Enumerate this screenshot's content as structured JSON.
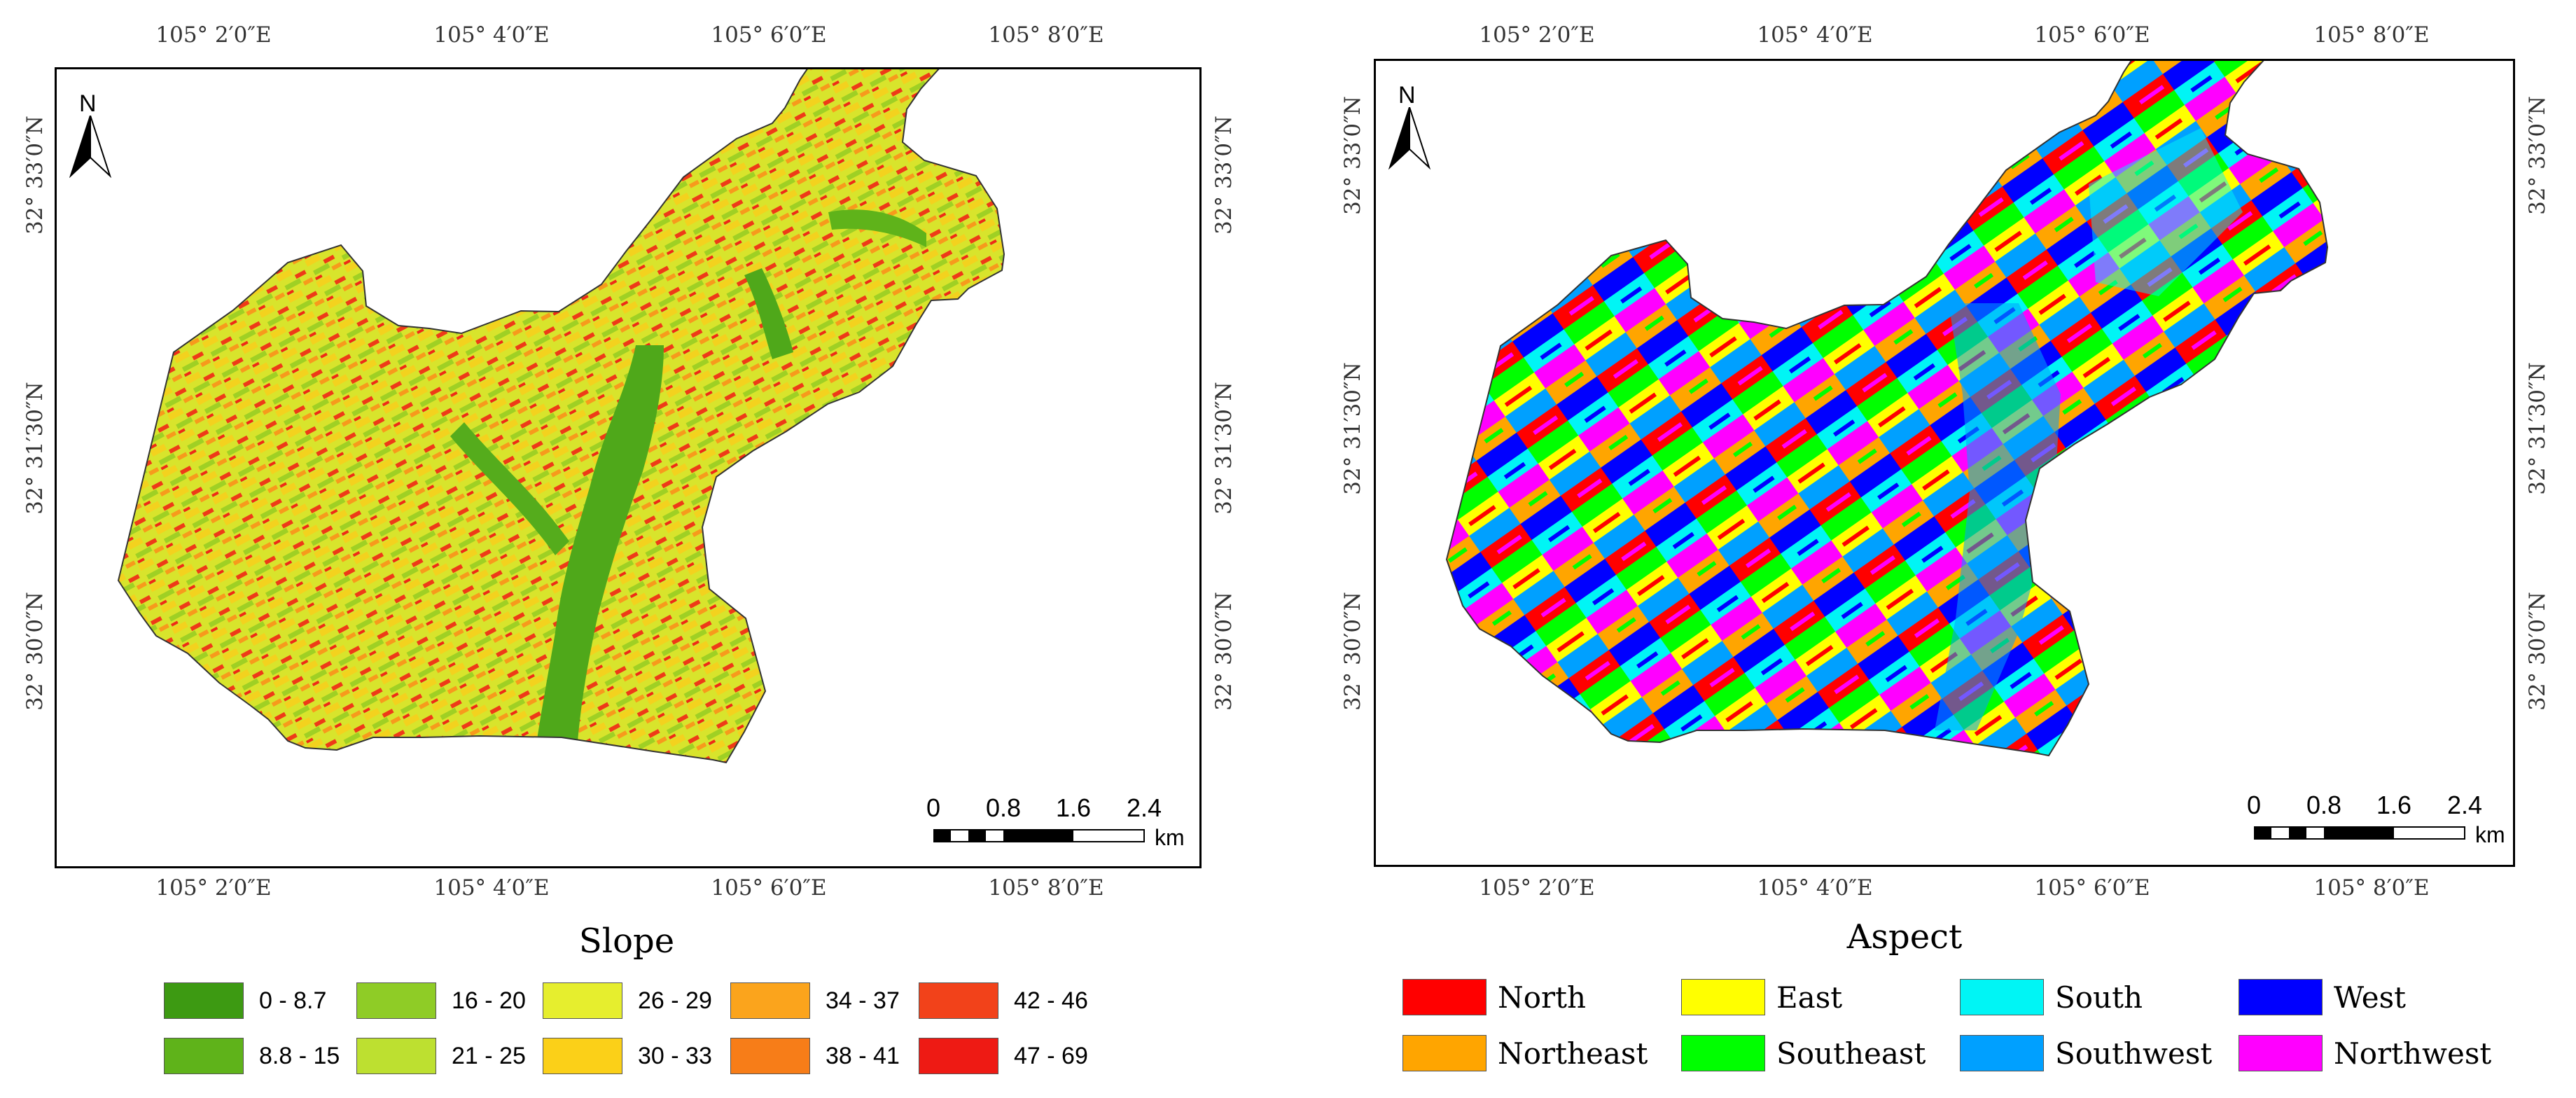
{
  "panels": [
    {
      "title": "Slope",
      "lon_labels": [
        "105° 2′0″E",
        "105° 4′0″E",
        "105° 6′0″E",
        "105° 8′0″E"
      ],
      "lat_labels": [
        "32° 33′0″N",
        "32° 31′30″N",
        "32° 30′0″N"
      ],
      "north_label": "N",
      "scale_labels": [
        "0",
        "0.8",
        "1.6",
        "2.4"
      ],
      "scale_unit": "km",
      "legend": [
        {
          "label": "0 - 8.7",
          "color": "#3d9a12"
        },
        {
          "label": "8.8 - 15",
          "color": "#5fb31a"
        },
        {
          "label": "16 - 20",
          "color": "#8fcc26"
        },
        {
          "label": "21 - 25",
          "color": "#bde030"
        },
        {
          "label": "26 - 29",
          "color": "#e6ee2e"
        },
        {
          "label": "30 - 33",
          "color": "#fbd018"
        },
        {
          "label": "34 - 37",
          "color": "#fba41c"
        },
        {
          "label": "38 - 41",
          "color": "#f77d18"
        },
        {
          "label": "42 - 46",
          "color": "#f2421a"
        },
        {
          "label": "47 - 69",
          "color": "#ee1a14"
        }
      ]
    },
    {
      "title": "Aspect",
      "lon_labels": [
        "105° 2′0″E",
        "105° 4′0″E",
        "105° 6′0″E",
        "105° 8′0″E"
      ],
      "lat_labels": [
        "32° 33′0″N",
        "32° 31′30″N",
        "32° 30′0″N"
      ],
      "north_label": "N",
      "scale_labels": [
        "0",
        "0.8",
        "1.6",
        "2.4"
      ],
      "scale_unit": "km",
      "legend": [
        {
          "label": "North",
          "color": "#ff0000"
        },
        {
          "label": "East",
          "color": "#ffff00"
        },
        {
          "label": "South",
          "color": "#00f5f5"
        },
        {
          "label": "West",
          "color": "#0000ff"
        },
        {
          "label": "Northeast",
          "color": "#ffa500"
        },
        {
          "label": "Southeast",
          "color": "#00ff00"
        },
        {
          "label": "Southwest",
          "color": "#00a0ff"
        },
        {
          "label": "Northwest",
          "color": "#ff00ff"
        }
      ]
    }
  ]
}
